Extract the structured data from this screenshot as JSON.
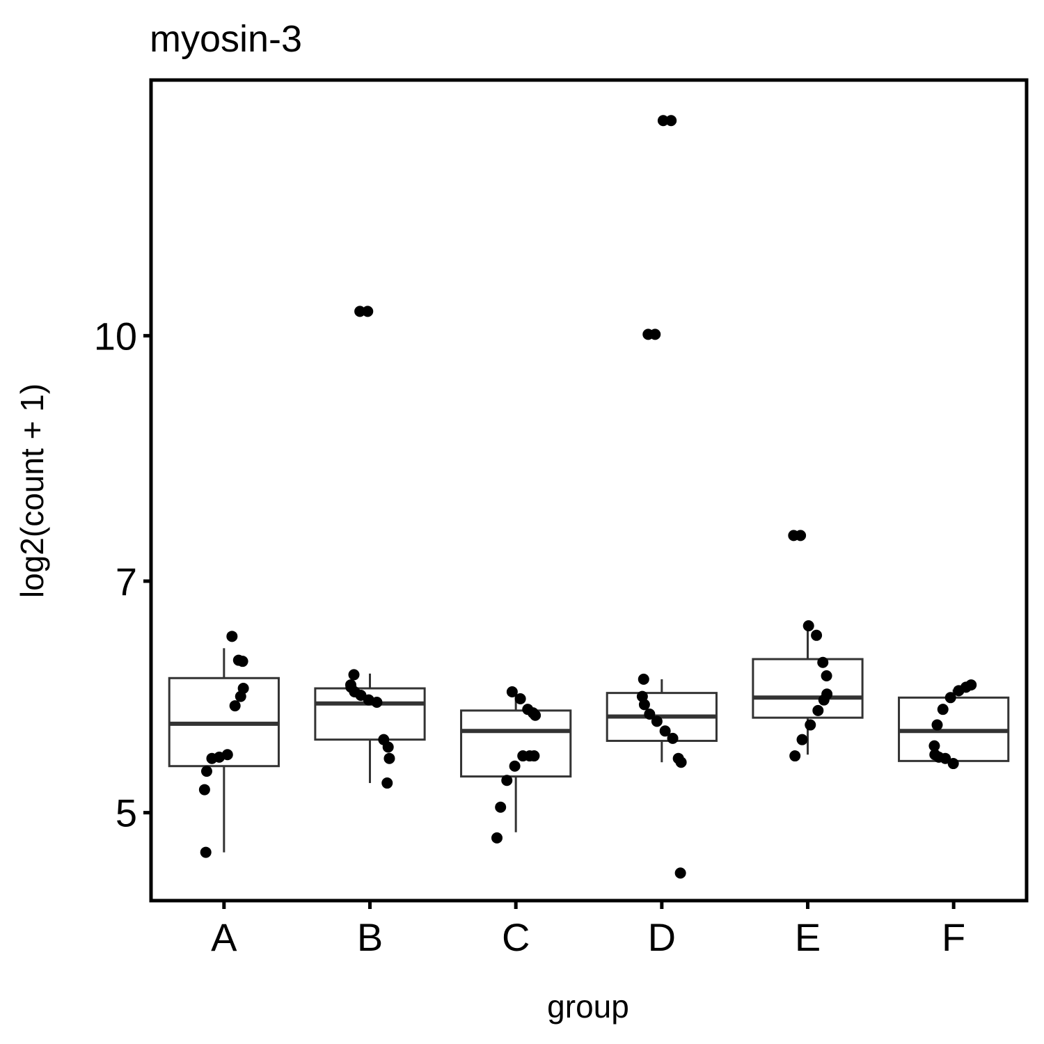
{
  "chart_data": {
    "type": "boxplot",
    "title": "myosin-3",
    "xlabel": "group",
    "ylabel": "log2(count + 1)",
    "y_scale": "log2",
    "ylim": [
      4.4,
      14.5
    ],
    "y_ticks": [
      5,
      7,
      10
    ],
    "y_tick_labels": [
      "5",
      "7",
      "10"
    ],
    "grid": false,
    "categories": [
      "A",
      "B",
      "C",
      "D",
      "E",
      "F"
    ],
    "boxes": [
      {
        "group": "A",
        "whisker_low": 4.72,
        "q1": 5.35,
        "median": 5.69,
        "q3": 6.08,
        "whisker_high": 6.35
      },
      {
        "group": "B",
        "whisker_low": 5.22,
        "q1": 5.56,
        "median": 5.86,
        "q3": 5.99,
        "whisker_high": 6.12
      },
      {
        "group": "C",
        "whisker_low": 4.86,
        "q1": 5.27,
        "median": 5.63,
        "q3": 5.8,
        "whisker_high": 5.98
      },
      {
        "group": "D",
        "whisker_low": 5.38,
        "q1": 5.55,
        "median": 5.75,
        "q3": 5.95,
        "whisker_high": 6.07
      },
      {
        "group": "E",
        "whisker_low": 5.44,
        "q1": 5.74,
        "median": 5.91,
        "q3": 6.25,
        "whisker_high": 6.53
      },
      {
        "group": "F",
        "whisker_low": 5.35,
        "q1": 5.39,
        "median": 5.63,
        "q3": 5.91,
        "whisker_high": 5.98
      }
    ],
    "points": [
      {
        "group": "A",
        "values": [
          6.46,
          6.24,
          6.23,
          5.99,
          5.92,
          5.84,
          5.44,
          5.42,
          5.41,
          5.31,
          5.17,
          4.72
        ]
      },
      {
        "group": "B",
        "values": [
          10.36,
          10.36,
          6.11,
          6.02,
          6.0,
          5.96,
          5.93,
          5.89,
          5.87,
          5.56,
          5.5,
          5.41,
          5.22
        ]
      },
      {
        "group": "C",
        "values": [
          5.96,
          5.9,
          5.81,
          5.78,
          5.76,
          5.43,
          5.43,
          5.43,
          5.35,
          5.24,
          5.04,
          4.82
        ]
      },
      {
        "group": "D",
        "values": [
          13.67,
          13.67,
          10.02,
          10.02,
          6.07,
          5.92,
          5.85,
          5.77,
          5.71,
          5.63,
          5.57,
          5.41,
          5.38,
          4.58
        ]
      },
      {
        "group": "E",
        "values": [
          7.48,
          7.48,
          6.56,
          6.47,
          6.22,
          6.1,
          5.94,
          5.89,
          5.8,
          5.68,
          5.56,
          5.43
        ]
      },
      {
        "group": "F",
        "values": [
          6.02,
          6.0,
          5.97,
          5.91,
          5.81,
          5.68,
          5.51,
          5.44,
          5.42,
          5.41,
          5.37
        ]
      }
    ],
    "colors": {
      "box_stroke": "#333333",
      "point_fill": "#000000",
      "frame": "#000000",
      "background": "#ffffff"
    }
  }
}
